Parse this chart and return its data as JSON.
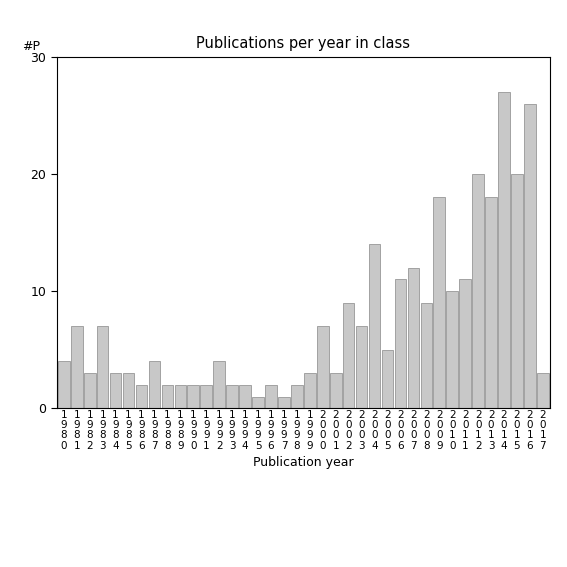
{
  "years": [
    1980,
    1981,
    1982,
    1983,
    1984,
    1985,
    1986,
    1987,
    1988,
    1989,
    1990,
    1991,
    1992,
    1993,
    1994,
    1995,
    1996,
    1997,
    1998,
    1999,
    2000,
    2001,
    2002,
    2003,
    2004,
    2005,
    2006,
    2007,
    2008,
    2009,
    2010,
    2011,
    2012,
    2013,
    2014,
    2015,
    2016,
    2017
  ],
  "values": [
    4,
    7,
    3,
    7,
    3,
    3,
    2,
    4,
    2,
    2,
    2,
    2,
    4,
    2,
    2,
    1,
    2,
    1,
    2,
    3,
    7,
    3,
    9,
    7,
    14,
    5,
    11,
    12,
    9,
    18,
    10,
    11,
    20,
    18,
    27,
    20,
    26,
    3
  ],
  "title": "Publications per year in class",
  "xlabel": "Publication year",
  "ylabel": "#P",
  "ylim": [
    0,
    30
  ],
  "bar_color": "#c8c8c8",
  "bar_edge_color": "#888888",
  "background_color": "#ffffff"
}
